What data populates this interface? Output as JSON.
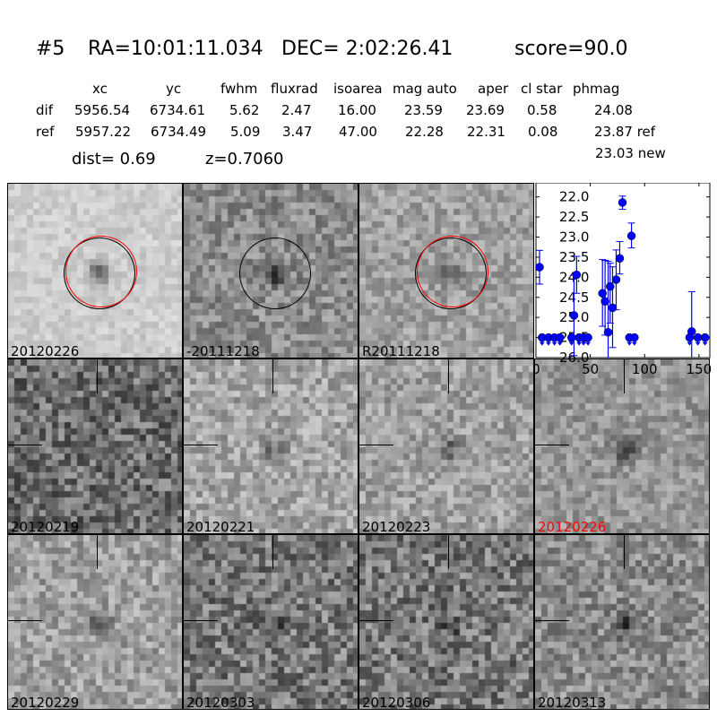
{
  "header": {
    "id": "#5",
    "ra": "RA=10:01:11.034",
    "dec": "DEC= 2:02:26.41",
    "score": "score=90.0"
  },
  "table": {
    "columns": [
      "xc",
      "yc",
      "fwhm",
      "fluxrad",
      "isoarea",
      "mag auto",
      "aper",
      "cl star",
      "phmag"
    ],
    "rows": [
      {
        "label": "dif",
        "values": [
          "5956.54",
          "6734.61",
          "5.62",
          "2.47",
          "16.00",
          "23.59",
          "23.69",
          "0.58",
          "24.08"
        ]
      },
      {
        "label": "ref",
        "values": [
          "5957.22",
          "6734.49",
          "5.09",
          "3.47",
          "47.00",
          "22.28",
          "22.31",
          "0.08",
          "23.87 ref"
        ]
      }
    ],
    "extra_phmag": "23.03 new",
    "dist": "dist=  0.69",
    "z": "z=0.7060"
  },
  "panels": [
    {
      "label": "20120226",
      "color": "#000000"
    },
    {
      "label": "-20111218",
      "color": "#000000"
    },
    {
      "label": "R20111218",
      "color": "#000000"
    },
    {
      "label": "20120219",
      "color": "#000000"
    },
    {
      "label": "20120221",
      "color": "#000000"
    },
    {
      "label": "20120223",
      "color": "#000000"
    },
    {
      "label": "20120226",
      "color": "#ff0000"
    },
    {
      "label": "20120229",
      "color": "#000000"
    },
    {
      "label": "20120303",
      "color": "#000000"
    },
    {
      "label": "20120306",
      "color": "#000000"
    },
    {
      "label": "20120313",
      "color": "#000000"
    }
  ],
  "chart_data": {
    "type": "scatter",
    "xlim": [
      0,
      160
    ],
    "ylim": [
      26.0,
      21.65
    ],
    "y_inverted": true,
    "xticks": [
      "0",
      "50",
      "100",
      "150"
    ],
    "yticks": [
      "22.0",
      "22.5",
      "23.0",
      "23.5",
      "24.0",
      "24.5",
      "25.0",
      "25.5",
      "26.0"
    ],
    "color": "#0000ff",
    "detections": [
      {
        "x": 3.3,
        "y": 23.75,
        "lo": 23.33,
        "hi": 24.17
      },
      {
        "x": 35,
        "y": 24.95,
        "lo": 23.95,
        "hi": 25.95
      },
      {
        "x": 37.4,
        "y": 23.94,
        "lo": 23.48,
        "hi": 24.4
      },
      {
        "x": 61.2,
        "y": 24.4,
        "lo": 23.56,
        "hi": 25.22
      },
      {
        "x": 63.6,
        "y": 24.6,
        "lo": 23.58,
        "hi": 25.44
      },
      {
        "x": 66.4,
        "y": 25.37,
        "lo": 23.6,
        "hi": 26.1
      },
      {
        "x": 68.3,
        "y": 24.23,
        "lo": 23.65,
        "hi": 25.14
      },
      {
        "x": 70.5,
        "y": 24.76,
        "lo": 23.74,
        "hi": 25.75
      },
      {
        "x": 73.8,
        "y": 24.06,
        "lo": 23.32,
        "hi": 24.81
      },
      {
        "x": 77.1,
        "y": 23.53,
        "lo": 23.11,
        "hi": 23.92
      },
      {
        "x": 79.6,
        "y": 22.14,
        "lo": 21.98,
        "hi": 22.31
      },
      {
        "x": 87.9,
        "y": 22.97,
        "lo": 22.65,
        "hi": 23.27
      },
      {
        "x": 143.3,
        "y": 25.35,
        "lo": 24.36,
        "hi": 26.1
      }
    ],
    "upper_limits": {
      "y": 25.5,
      "x": [
        5.6,
        11.5,
        17,
        22,
        32.8,
        39.7,
        43.8,
        47.9,
        86,
        90.6,
        141.4,
        149,
        155.6
      ]
    }
  }
}
